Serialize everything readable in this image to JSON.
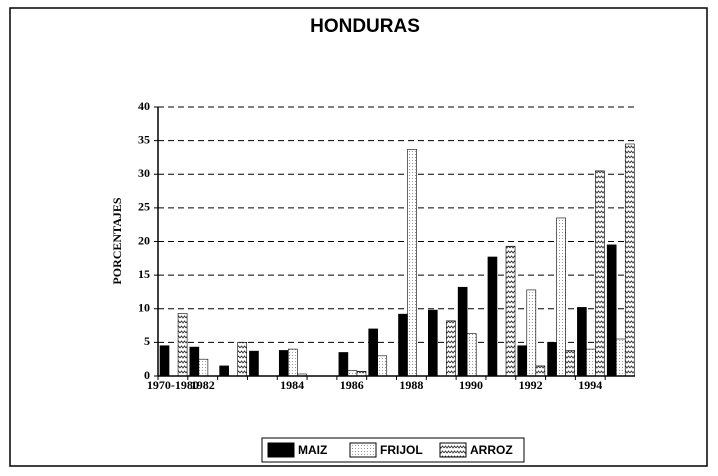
{
  "chart_data": {
    "type": "bar",
    "title": "HONDURAS",
    "y_label": "PORCENTAJES",
    "categories": [
      "1970-1980",
      "1982",
      null,
      null,
      "1984",
      null,
      "1986",
      null,
      "1988",
      null,
      "1990",
      null,
      "1992",
      null,
      "1994",
      null
    ],
    "series": [
      {
        "name": "MAIZ",
        "color": "#000000",
        "values": [
          4.5,
          4.3,
          1.5,
          3.7,
          3.8,
          0,
          3.5,
          7.0,
          9.2,
          9.8,
          13.2,
          17.7,
          4.5,
          5.0,
          10.2,
          19.5
        ]
      },
      {
        "name": "FRIJOL",
        "color": "#9a9a9a",
        "values": [
          0,
          2.5,
          0,
          0,
          4.0,
          0,
          0.8,
          3.0,
          33.7,
          0,
          6.3,
          0,
          12.8,
          23.5,
          4.0,
          5.5
        ]
      },
      {
        "name": "ARROZ",
        "color": "#333333",
        "values": [
          9.3,
          0,
          5.0,
          0,
          0.3,
          0,
          0.7,
          0,
          0,
          8.2,
          0,
          19.3,
          1.5,
          3.8,
          30.5,
          34.5
        ]
      }
    ],
    "ylim": [
      0,
      40
    ],
    "yticks": [
      0,
      5,
      10,
      15,
      20,
      25,
      30,
      35,
      40
    ],
    "grid": true
  }
}
